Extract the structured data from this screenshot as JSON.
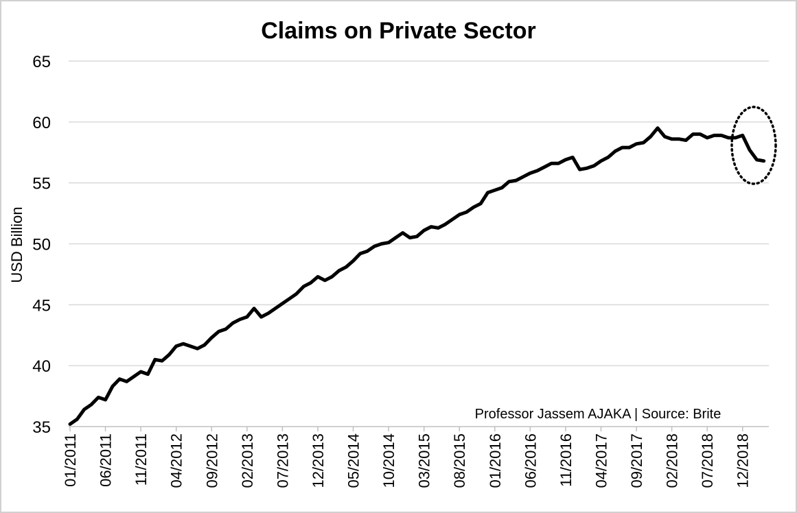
{
  "chart_data": {
    "type": "line",
    "title": "Claims on Private Sector",
    "xlabel": "",
    "ylabel": "USD Billion",
    "ylim": [
      35,
      65
    ],
    "yticks": [
      35,
      40,
      45,
      50,
      55,
      60,
      65
    ],
    "grid": "horizontal",
    "line_color": "#000000",
    "annotation": "Professor Jassem AJAKA | Source: Brite",
    "highlight": "dotted ellipse around the final months",
    "x_tick_labels": [
      "01/2011",
      "06/2011",
      "11/2011",
      "04/2012",
      "09/2012",
      "02/2013",
      "07/2013",
      "12/2013",
      "05/2014",
      "10/2014",
      "03/2015",
      "08/2015",
      "01/2016",
      "06/2016",
      "11/2016",
      "04/2017",
      "09/2017",
      "02/2018",
      "07/2018",
      "12/2018"
    ],
    "x_start": "01/2011",
    "x_frequency": "monthly",
    "series": [
      {
        "values": [
          35.2,
          35.6,
          36.4,
          36.8,
          37.4,
          37.2,
          38.3,
          38.9,
          38.7,
          39.1,
          39.5,
          39.3,
          40.5,
          40.4,
          40.9,
          41.6,
          41.8,
          41.6,
          41.4,
          41.7,
          42.3,
          42.8,
          43.0,
          43.5,
          43.8,
          44.0,
          44.7,
          44.0,
          44.3,
          44.7,
          45.1,
          45.5,
          45.9,
          46.5,
          46.8,
          47.3,
          47.0,
          47.3,
          47.8,
          48.1,
          48.6,
          49.2,
          49.4,
          49.8,
          50.0,
          50.1,
          50.5,
          50.9,
          50.5,
          50.6,
          51.1,
          51.4,
          51.3,
          51.6,
          52.0,
          52.4,
          52.6,
          53.0,
          53.3,
          54.2,
          54.4,
          54.6,
          55.1,
          55.2,
          55.5,
          55.8,
          56.0,
          56.3,
          56.6,
          56.6,
          56.9,
          57.1,
          56.1,
          56.2,
          56.4,
          56.8,
          57.1,
          57.6,
          57.9,
          57.9,
          58.2,
          58.3,
          58.8,
          59.5,
          58.8,
          58.6,
          58.6,
          58.5,
          59.0,
          59.0,
          58.7,
          58.9,
          58.9,
          58.7,
          58.7,
          58.9,
          57.7,
          56.9,
          56.8
        ]
      }
    ]
  }
}
